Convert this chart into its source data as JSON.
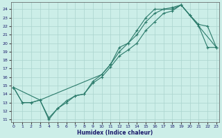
{
  "xlabel": "Humidex (Indice chaleur)",
  "bg_color": "#cceee8",
  "grid_color": "#aad4ce",
  "line_color": "#2a7a6a",
  "line1_x": [
    0,
    1,
    2,
    3,
    4,
    5,
    6,
    7,
    8,
    9,
    10,
    11,
    12,
    13,
    14,
    15,
    16,
    17,
    18,
    19,
    20,
    21,
    22,
    23
  ],
  "line1_y": [
    14.8,
    13.0,
    13.0,
    13.3,
    11.0,
    12.3,
    13.0,
    13.8,
    14.0,
    15.5,
    16.3,
    17.5,
    19.5,
    20.0,
    21.5,
    23.0,
    24.0,
    24.0,
    24.0,
    24.5,
    23.3,
    22.0,
    19.5,
    19.5
  ],
  "line2_x": [
    0,
    1,
    2,
    3,
    4,
    5,
    6,
    7,
    8,
    9,
    10,
    11,
    12,
    13,
    14,
    15,
    16,
    17,
    18,
    19,
    20,
    21,
    22,
    23
  ],
  "line2_y": [
    14.8,
    13.0,
    13.0,
    13.3,
    11.2,
    12.3,
    13.2,
    13.8,
    14.0,
    15.3,
    16.0,
    17.2,
    18.5,
    19.2,
    20.0,
    21.5,
    22.5,
    23.5,
    23.8,
    24.5,
    23.3,
    22.2,
    22.0,
    19.5
  ],
  "line3_x": [
    0,
    3,
    10,
    11,
    12,
    13,
    14,
    15,
    16,
    17,
    18,
    19,
    23
  ],
  "line3_y": [
    14.8,
    13.3,
    16.3,
    17.5,
    19.0,
    20.0,
    21.0,
    22.5,
    23.5,
    24.0,
    24.2,
    24.5,
    19.5
  ],
  "xlim": [
    -0.3,
    23.3
  ],
  "ylim": [
    10.7,
    24.8
  ],
  "yticks": [
    11,
    12,
    13,
    14,
    15,
    16,
    17,
    18,
    19,
    20,
    21,
    22,
    23,
    24
  ],
  "xticks": [
    0,
    1,
    2,
    3,
    4,
    5,
    6,
    7,
    8,
    9,
    10,
    11,
    12,
    13,
    14,
    15,
    16,
    17,
    18,
    19,
    20,
    21,
    22,
    23
  ]
}
